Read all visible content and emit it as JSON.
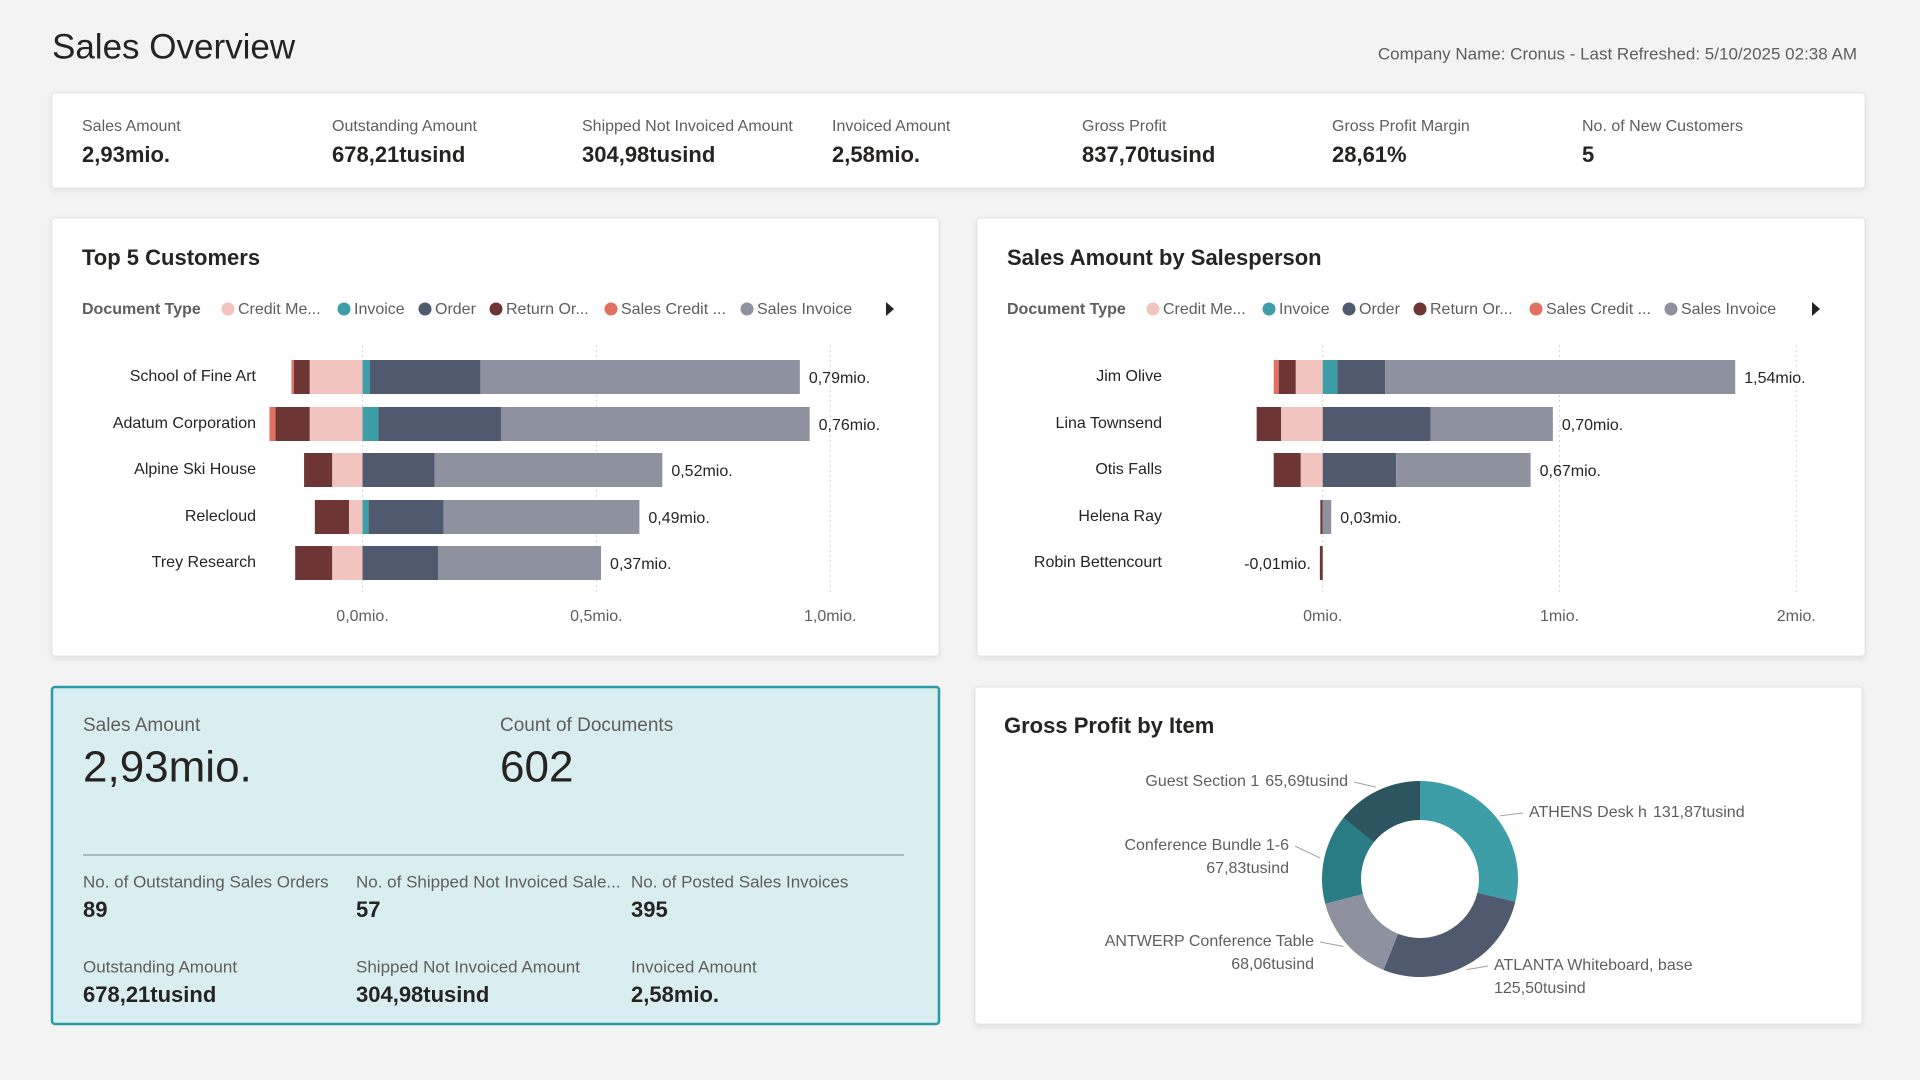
{
  "header": {
    "title": "Sales Overview",
    "subtitle": "Company Name: Cronus - Last Refreshed: 5/10/2025 02:38 AM"
  },
  "kpis": [
    {
      "label": "Sales Amount",
      "value": "2,93mio."
    },
    {
      "label": "Outstanding Amount",
      "value": "678,21tusind"
    },
    {
      "label": "Shipped Not Invoiced Amount",
      "value": "304,98tusind"
    },
    {
      "label": "Invoiced Amount",
      "value": "2,58mio."
    },
    {
      "label": "Gross Profit",
      "value": "837,70tusind"
    },
    {
      "label": "Gross Profit Margin",
      "value": "28,61%"
    },
    {
      "label": "No. of New Customers",
      "value": "5"
    }
  ],
  "chart_data": [
    {
      "type": "bar",
      "orientation": "horizontal",
      "stacked": true,
      "title": "Top 5 Customers",
      "legend_title": "Document Type",
      "categories": [
        "School of Fine Art",
        "Adatum Corporation",
        "Alpine Ski House",
        "Relecloud",
        "Trey Research"
      ],
      "series": [
        {
          "name": "Credit Me...",
          "color": "#f2c4c0",
          "values": [
            -0.113,
            -0.113,
            -0.065,
            -0.029,
            -0.065
          ]
        },
        {
          "name": "Invoice",
          "color": "#3d9ea8",
          "values": [
            0.016,
            0.034,
            null,
            0.013,
            null
          ]
        },
        {
          "name": "Order",
          "color": "#4f5a6e",
          "values": [
            0.236,
            0.262,
            0.154,
            0.16,
            0.162
          ]
        },
        {
          "name": "Return Or...",
          "color": "#6e3535",
          "values": [
            -0.034,
            -0.073,
            -0.06,
            -0.073,
            -0.079
          ]
        },
        {
          "name": "Sales Credit ...",
          "color": "#e07060",
          "values": [
            -0.005,
            -0.013,
            null,
            null,
            null
          ]
        },
        {
          "name": "Sales Invoice",
          "color": "#8e919e",
          "values": [
            0.683,
            0.66,
            0.487,
            0.419,
            0.348
          ]
        }
      ],
      "totals": {
        "values": [
          0.79,
          0.76,
          0.52,
          0.49,
          0.37
        ],
        "value_labels": [
          "0,79mio.",
          "0,76mio.",
          "0,52mio.",
          "0,49mio.",
          "0,37mio."
        ]
      },
      "xlim": [
        -0.2,
        1.1
      ],
      "xticks": [
        {
          "value": 0,
          "label": "0,0mio."
        },
        {
          "value": 0.5,
          "label": "0,5mio."
        },
        {
          "value": 1,
          "label": "1,0mio."
        }
      ],
      "grid": true
    },
    {
      "type": "bar",
      "orientation": "horizontal",
      "stacked": true,
      "title": "Sales Amount by Salesperson",
      "legend_title": "Document Type",
      "categories": [
        "Jim Olive",
        "Lina Townsend",
        "Otis Falls",
        "Helena Ray",
        "Robin Bettencourt"
      ],
      "series": [
        {
          "name": "Credit Me...",
          "color": "#f2c4c0",
          "values": [
            -0.114,
            -0.176,
            -0.093,
            null,
            null
          ]
        },
        {
          "name": "Invoice",
          "color": "#3d9ea8",
          "values": [
            0.062,
            null,
            null,
            null,
            null
          ]
        },
        {
          "name": "Order",
          "color": "#4f5a6e",
          "values": [
            0.202,
            0.455,
            0.31,
            null,
            null
          ]
        },
        {
          "name": "Return Or...",
          "color": "#6e3535",
          "values": [
            -0.072,
            -0.103,
            -0.114,
            -0.01,
            -0.012
          ]
        },
        {
          "name": "Sales Credit ...",
          "color": "#e07060",
          "values": [
            -0.021,
            null,
            null,
            null,
            null
          ]
        },
        {
          "name": "Sales Invoice",
          "color": "#8e919e",
          "values": [
            1.478,
            0.517,
            0.568,
            0.036,
            null
          ]
        }
      ],
      "totals": {
        "values": [
          1.54,
          0.7,
          0.67,
          0.03,
          -0.01
        ],
        "value_labels": [
          "1,54mio.",
          "0,70mio.",
          "0,67mio.",
          "0,03mio.",
          "-0,01mio."
        ]
      },
      "xlim": [
        -0.4,
        2.1
      ],
      "xticks": [
        {
          "value": 0,
          "label": "0mio."
        },
        {
          "value": 1,
          "label": "1mio."
        },
        {
          "value": 2,
          "label": "2mio."
        }
      ],
      "grid": true
    },
    {
      "type": "pie",
      "donut": true,
      "title": "Gross Profit by Item",
      "categories": [
        "ATHENS Desk h",
        "ATLANTA Whiteboard, base",
        "ANTWERP Conference Table",
        "Conference Bundle 1-6",
        "Guest Section 1"
      ],
      "values": [
        131.87,
        125.5,
        68.06,
        67.83,
        65.69
      ],
      "value_labels": [
        "131,87tusind",
        "125,50tusind",
        "68,06tusind",
        "67,83tusind",
        "65,69tusind"
      ],
      "colors": [
        "#3d9ea8",
        "#4f5a6e",
        "#8e919e",
        "#2a7c84",
        "#2c5560"
      ]
    }
  ],
  "card": {
    "main": [
      {
        "label": "Sales Amount",
        "value": "2,93mio."
      },
      {
        "label": "Count of Documents",
        "value": "602"
      }
    ],
    "items": [
      {
        "label": "No. of Outstanding Sales Orders",
        "value": "89"
      },
      {
        "label": "No. of Shipped Not Invoiced Sale...",
        "value": "57"
      },
      {
        "label": "No. of Posted Sales Invoices",
        "value": "395"
      },
      {
        "label": "Outstanding Amount",
        "value": "678,21tusind"
      },
      {
        "label": "Shipped Not Invoiced Amount",
        "value": "304,98tusind"
      },
      {
        "label": "Invoiced Amount",
        "value": "2,58mio."
      }
    ]
  }
}
